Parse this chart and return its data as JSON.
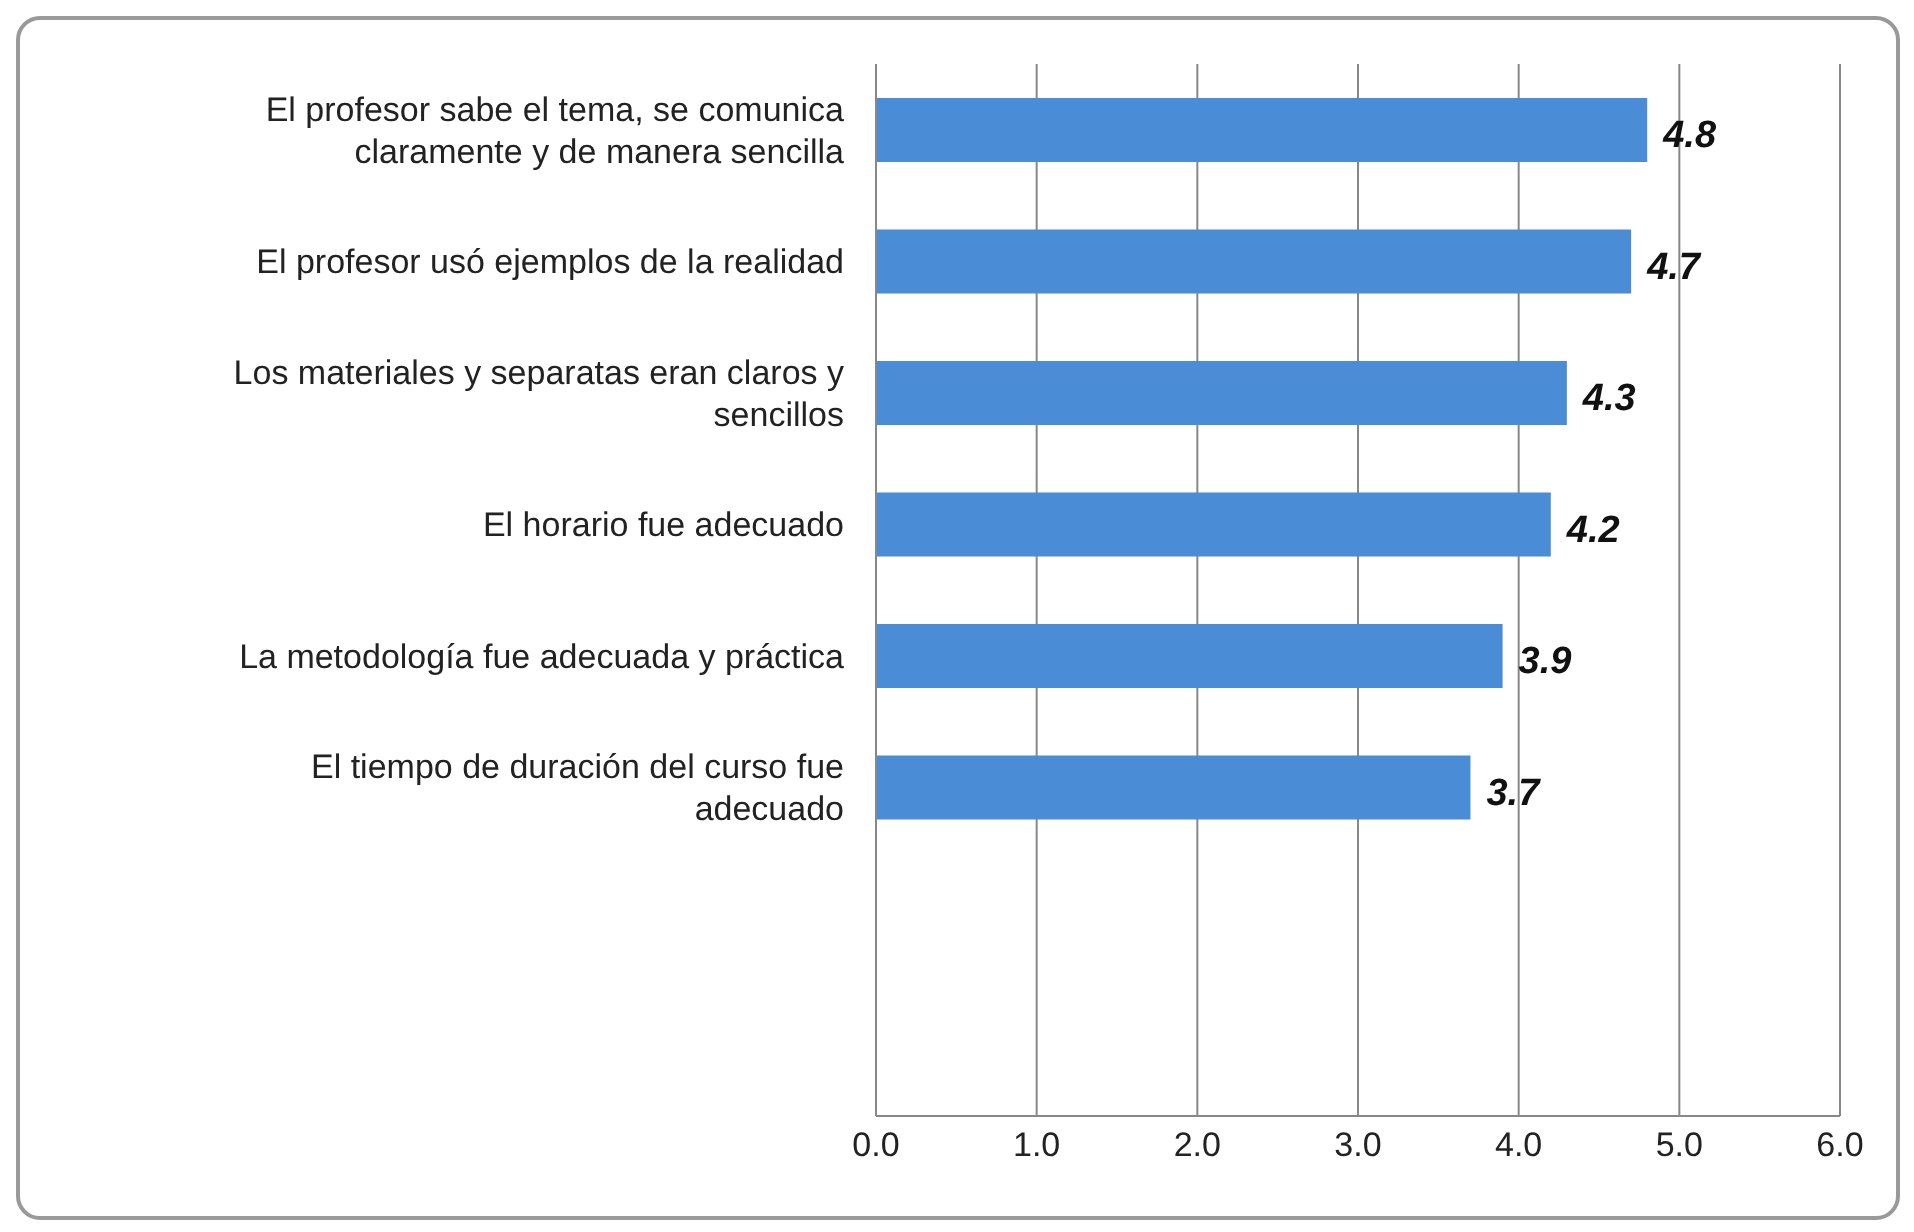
{
  "chart_data": {
    "type": "bar",
    "orientation": "horizontal",
    "categories": [
      "El profesor sabe el tema, se comunica claramente y de manera sencilla",
      "El profesor usó ejemplos de la realidad",
      "Los materiales y separatas eran claros y sencillos",
      "El horario fue adecuado",
      "La metodología fue adecuada y práctica",
      "El tiempo de duración del curso fue adecuado",
      null,
      null
    ],
    "values": [
      4.8,
      4.7,
      4.3,
      4.2,
      3.9,
      3.7,
      null,
      null
    ],
    "color": "#4a8cd6",
    "xlim": [
      0,
      6
    ],
    "xticks": [
      {
        "value": 0,
        "label": "0.0"
      },
      {
        "value": 1,
        "label": "1.0"
      },
      {
        "value": 2,
        "label": "2.0"
      },
      {
        "value": 3,
        "label": "3.0"
      },
      {
        "value": 4,
        "label": "4.0"
      },
      {
        "value": 5,
        "label": "5.0"
      },
      {
        "value": 6,
        "label": "6.0"
      }
    ],
    "grid": "x",
    "data_labels": true
  }
}
